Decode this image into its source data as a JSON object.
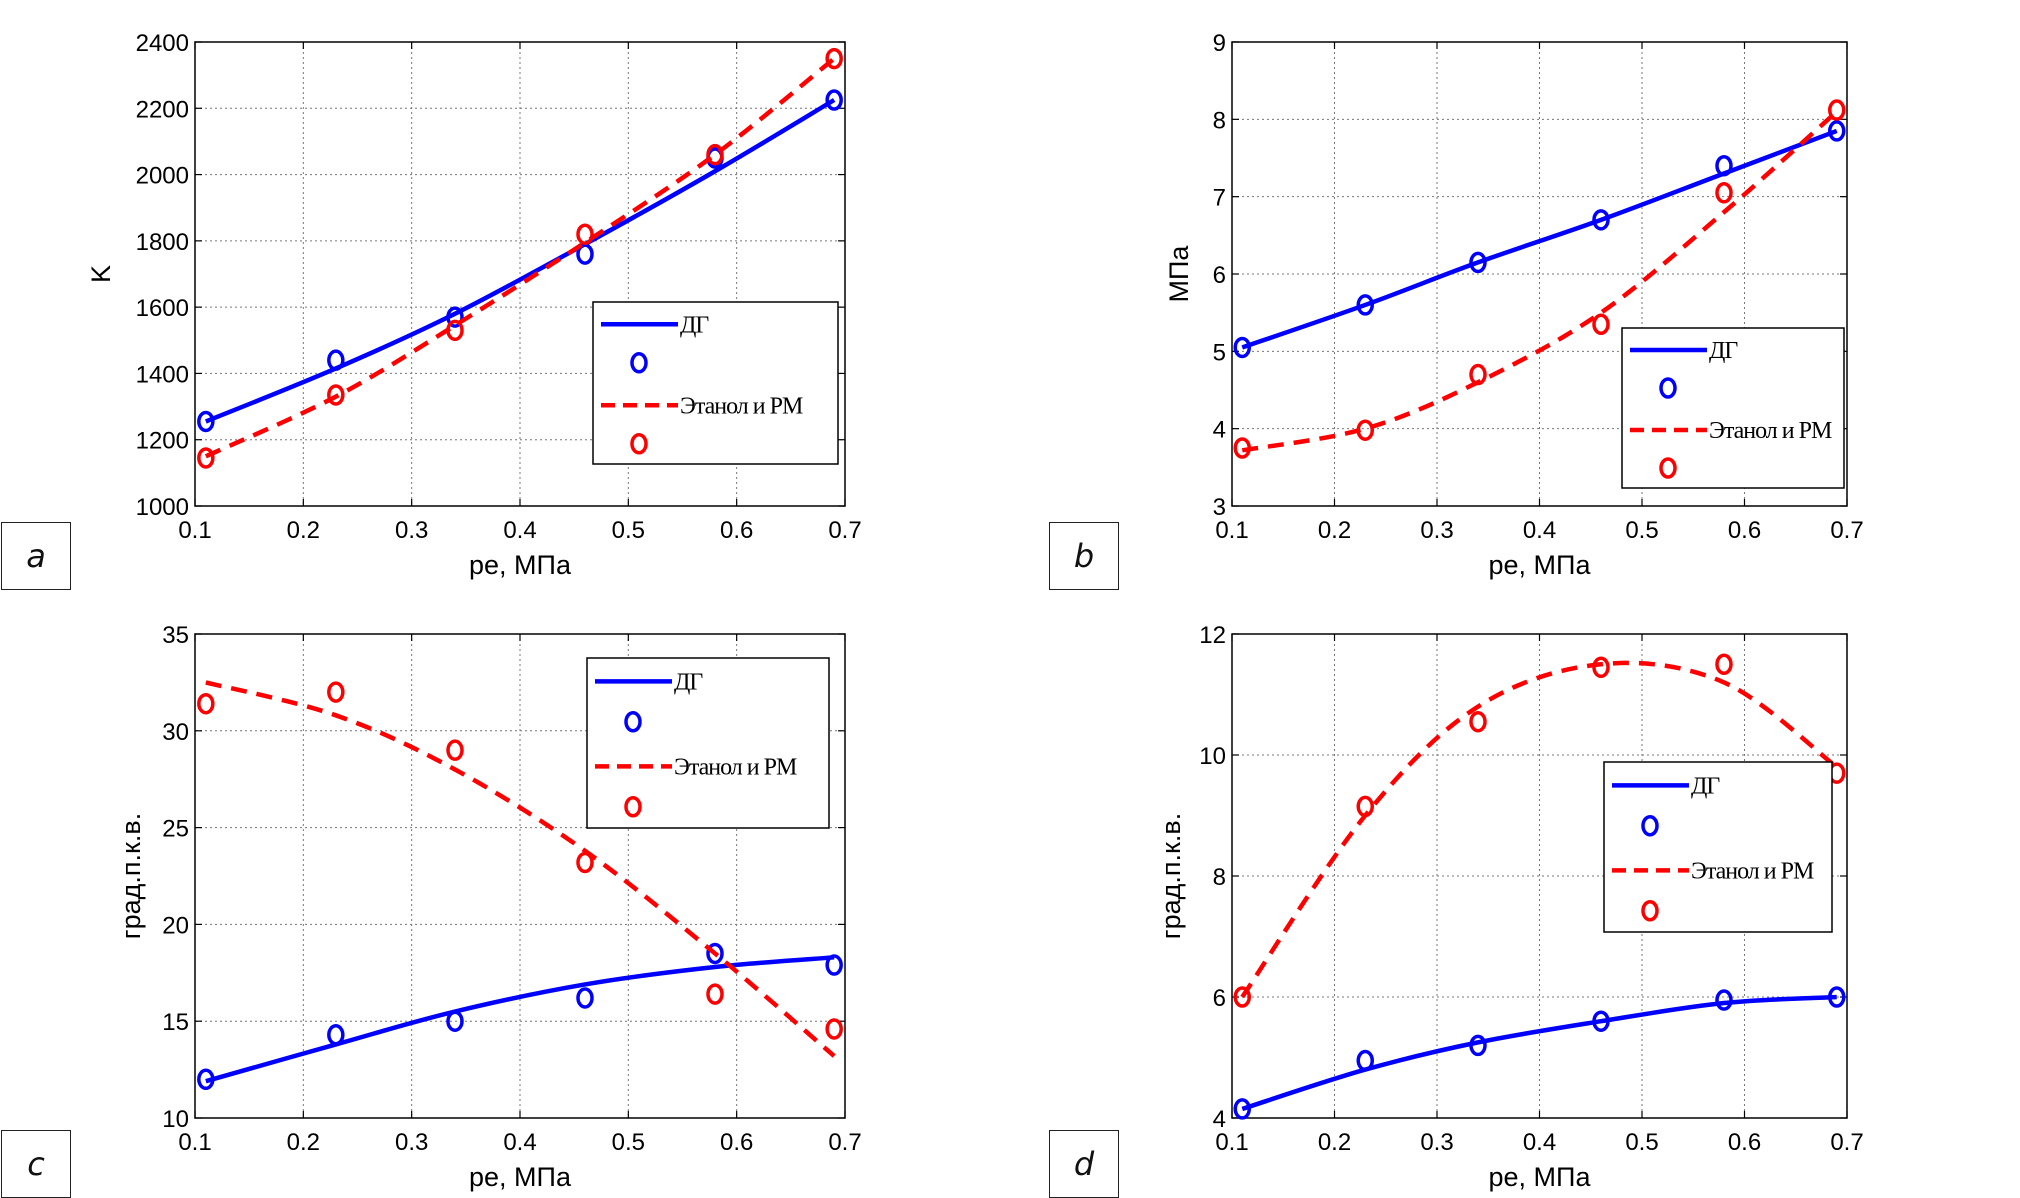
{
  "chart_data": [
    {
      "id": "a",
      "type": "line",
      "panel_label": "a",
      "xlabel": "pe, МПа",
      "ylabel": "K",
      "xlim": [
        0.1,
        0.7
      ],
      "ylim": [
        1000,
        2400
      ],
      "xticks": [
        "0.1",
        "0.2",
        "0.3",
        "0.4",
        "0.5",
        "0.6",
        "0.7"
      ],
      "yticks": [
        "1000",
        "1200",
        "1400",
        "1600",
        "1800",
        "2000",
        "2200",
        "2400"
      ],
      "grid": true,
      "legend_position": "center-right",
      "series": [
        {
          "name": "ДГ",
          "style": "solid",
          "color": "#0000ff",
          "x": [
            0.11,
            0.23,
            0.34,
            0.46,
            0.58,
            0.69
          ],
          "line_values": [
            1255,
            1415,
            1580,
            1790,
            2010,
            2225
          ],
          "marker_values": [
            1255,
            1440,
            1570,
            1760,
            2050,
            2225
          ]
        },
        {
          "name": "Этанол и РМ",
          "style": "dashed",
          "color": "#ff0000",
          "x": [
            0.11,
            0.23,
            0.34,
            0.46,
            0.58,
            0.69
          ],
          "line_values": [
            1150,
            1330,
            1545,
            1795,
            2060,
            2350
          ],
          "marker_values": [
            1145,
            1335,
            1530,
            1820,
            2060,
            2350
          ]
        }
      ]
    },
    {
      "id": "b",
      "type": "line",
      "panel_label": "b",
      "xlabel": "pe, МПа",
      "ylabel": "МПа",
      "xlim": [
        0.1,
        0.7
      ],
      "ylim": [
        3,
        9
      ],
      "xticks": [
        "0.1",
        "0.2",
        "0.3",
        "0.4",
        "0.5",
        "0.6",
        "0.7"
      ],
      "yticks": [
        "3",
        "4",
        "5",
        "6",
        "7",
        "8",
        "9"
      ],
      "grid": true,
      "legend_position": "bottom-right",
      "series": [
        {
          "name": "ДГ",
          "style": "solid",
          "color": "#0000ff",
          "x": [
            0.11,
            0.23,
            0.34,
            0.46,
            0.58,
            0.69
          ],
          "line_values": [
            5.05,
            5.6,
            6.15,
            6.7,
            7.3,
            7.85
          ],
          "marker_values": [
            5.05,
            5.6,
            6.15,
            6.7,
            7.4,
            7.85
          ]
        },
        {
          "name": "Этанол и РМ",
          "style": "dashed",
          "color": "#ff0000",
          "x": [
            0.11,
            0.23,
            0.34,
            0.46,
            0.58,
            0.69
          ],
          "line_values": [
            3.72,
            4.0,
            4.6,
            5.5,
            6.8,
            8.1
          ],
          "marker_values": [
            3.75,
            3.98,
            4.7,
            5.35,
            7.05,
            8.12
          ]
        }
      ]
    },
    {
      "id": "c",
      "type": "line",
      "panel_label": "c",
      "xlabel": "pe, МПа",
      "ylabel": "град.п.к.в.",
      "xlim": [
        0.1,
        0.7
      ],
      "ylim": [
        10,
        35
      ],
      "xticks": [
        "0.1",
        "0.2",
        "0.3",
        "0.4",
        "0.5",
        "0.6",
        "0.7"
      ],
      "yticks": [
        "10",
        "15",
        "20",
        "25",
        "30",
        "35"
      ],
      "grid": true,
      "legend_position": "top-right",
      "series": [
        {
          "name": "ДГ",
          "style": "solid",
          "color": "#0000ff",
          "x": [
            0.11,
            0.23,
            0.34,
            0.46,
            0.58,
            0.69
          ],
          "line_values": [
            11.9,
            13.8,
            15.5,
            16.9,
            17.8,
            18.3
          ],
          "marker_values": [
            12.0,
            14.3,
            15.0,
            16.2,
            18.5,
            17.9
          ]
        },
        {
          "name": "Этанол и РМ",
          "style": "dashed",
          "color": "#ff0000",
          "x": [
            0.11,
            0.23,
            0.34,
            0.46,
            0.58,
            0.69
          ],
          "line_values": [
            32.5,
            30.8,
            28.0,
            23.8,
            18.5,
            13.2
          ],
          "marker_values": [
            31.4,
            32.0,
            29.0,
            23.2,
            16.4,
            14.6
          ]
        }
      ]
    },
    {
      "id": "d",
      "type": "line",
      "panel_label": "d",
      "xlabel": "pe, МПа",
      "ylabel": "град.п.к.в.",
      "xlim": [
        0.1,
        0.7
      ],
      "ylim": [
        4,
        12
      ],
      "xticks": [
        "0.1",
        "0.2",
        "0.3",
        "0.4",
        "0.5",
        "0.6",
        "0.7"
      ],
      "yticks": [
        "4",
        "6",
        "8",
        "10",
        "12"
      ],
      "grid": true,
      "legend_position": "center-right",
      "series": [
        {
          "name": "ДГ",
          "style": "solid",
          "color": "#0000ff",
          "x": [
            0.11,
            0.23,
            0.34,
            0.46,
            0.58,
            0.69
          ],
          "line_values": [
            4.15,
            4.8,
            5.25,
            5.6,
            5.9,
            6.0
          ],
          "marker_values": [
            4.15,
            4.95,
            5.2,
            5.6,
            5.95,
            6.0
          ]
        },
        {
          "name": "Этанол и РМ",
          "style": "dashed",
          "color": "#ff0000",
          "x": [
            0.11,
            0.23,
            0.34,
            0.46,
            0.58,
            0.69
          ],
          "line_values": [
            6.0,
            9.0,
            10.8,
            11.5,
            11.2,
            9.8
          ],
          "marker_values": [
            6.0,
            9.15,
            10.55,
            11.45,
            11.5,
            9.7
          ]
        }
      ]
    }
  ]
}
